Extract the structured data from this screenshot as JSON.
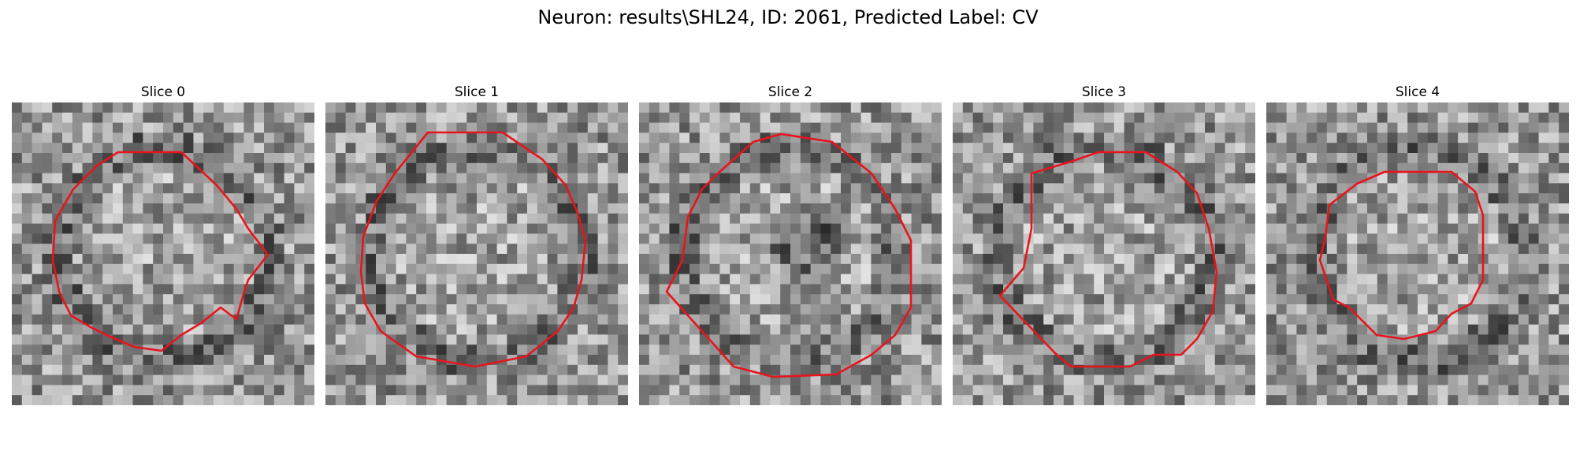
{
  "figure": {
    "title": "Neuron: results\\SHL24, ID: 2061, Predicted Label: CV"
  },
  "colors": {
    "roi_outline": "#e8141c"
  },
  "panels": [
    {
      "title": "Slice 0"
    },
    {
      "title": "Slice 1"
    },
    {
      "title": "Slice 2"
    },
    {
      "title": "Slice 3"
    },
    {
      "title": "Slice 4"
    }
  ]
}
